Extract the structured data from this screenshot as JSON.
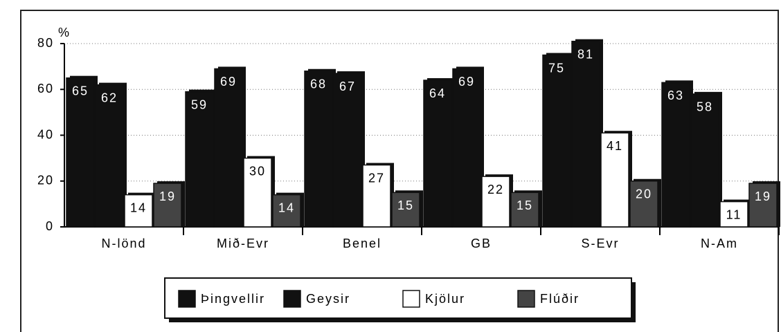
{
  "chart_data": {
    "type": "bar",
    "y_label": "%",
    "categories": [
      "N-lönd",
      "Mið-Evr",
      "Benel",
      "GB",
      "S-Evr",
      "N-Am"
    ],
    "series": [
      {
        "name": "Þingvellir",
        "color": "#111111",
        "values": [
          65,
          59,
          68,
          64,
          75,
          63
        ]
      },
      {
        "name": "Geysir",
        "color": "#111111",
        "values": [
          62,
          69,
          67,
          69,
          81,
          58
        ]
      },
      {
        "name": "Kjölur",
        "color": "#ffffff",
        "values": [
          14,
          30,
          27,
          22,
          41,
          11
        ]
      },
      {
        "name": "Flúðir",
        "color": "#444444",
        "values": [
          19,
          14,
          15,
          15,
          20,
          19
        ]
      }
    ],
    "ylim": [
      0,
      80
    ],
    "yticks": [
      0,
      20,
      40,
      60,
      80
    ],
    "grid": true,
    "legend": "bottom"
  }
}
